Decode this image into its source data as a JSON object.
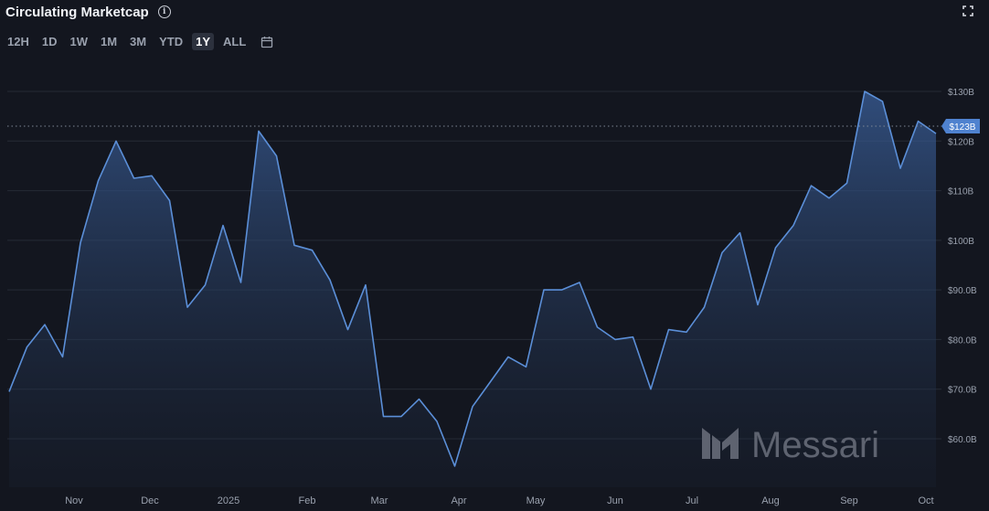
{
  "header": {
    "title": "Circulating Marketcap",
    "info_icon": "info-icon",
    "expand_icon": "fullscreen-icon"
  },
  "ranges": [
    "12H",
    "1D",
    "1W",
    "1M",
    "3M",
    "YTD",
    "1Y",
    "ALL"
  ],
  "active_range": "1Y",
  "calendar_icon": "calendar-icon",
  "watermark": "Messari",
  "colors": {
    "background": "#13161f",
    "line": "#5b8fd8",
    "badge": "#4f82cf",
    "grid": "#262b36"
  },
  "chart_data": {
    "type": "area",
    "title": "Circulating Marketcap",
    "y_unit": "USD",
    "ylim": [
      52,
      133
    ],
    "y_ticks": [
      60,
      70,
      80,
      90,
      100,
      110,
      120,
      130
    ],
    "y_tick_labels": [
      "$60.0B",
      "$70.0B",
      "$80.0B",
      "$90.0B",
      "$100B",
      "$110B",
      "$120B",
      "$130B"
    ],
    "x_ticks": [
      "Nov",
      "Dec",
      "2025",
      "Feb",
      "Mar",
      "Apr",
      "May",
      "Jun",
      "Jul",
      "Aug",
      "Sep",
      "Oct"
    ],
    "current_value_label": "$123B",
    "current_value": 123,
    "series": [
      {
        "values": [
          69.5,
          78.5,
          83,
          76.5,
          99.5,
          112,
          120,
          112.5,
          113,
          108,
          86.5,
          91,
          103,
          91.5,
          122,
          117,
          99,
          98,
          92,
          82,
          91,
          64.5,
          64.5,
          68,
          63.5,
          54.5,
          66.5,
          71.5,
          76.5,
          74.5,
          90,
          90,
          91.5,
          82.5,
          80,
          80.5,
          70,
          82,
          81.5,
          86.5,
          97.5,
          101.5,
          87,
          98.5,
          103,
          111,
          108.5,
          111.5,
          130,
          128,
          114.5,
          124,
          121.5
        ]
      }
    ]
  }
}
